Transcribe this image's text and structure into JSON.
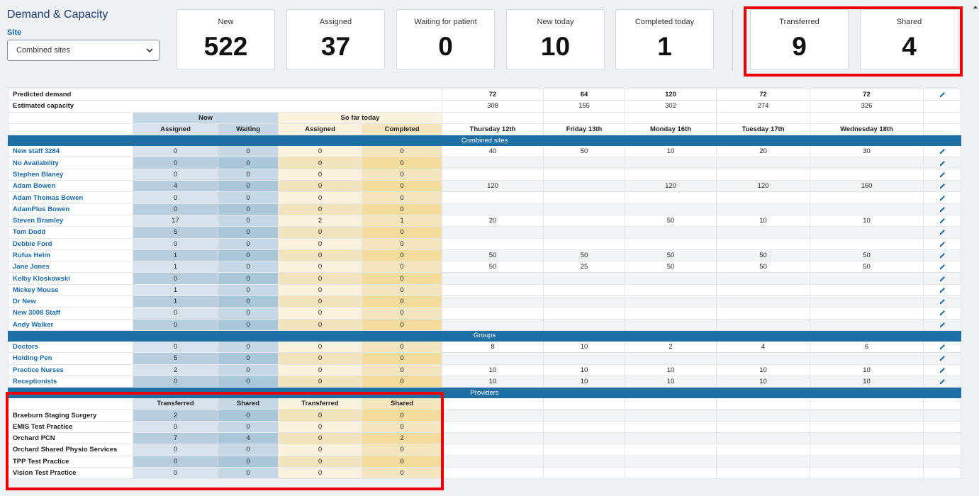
{
  "header": {
    "title": "Demand & Capacity",
    "site_label": "Site",
    "site_selected": "Combined sites"
  },
  "cards": [
    {
      "label": "New",
      "value": "522"
    },
    {
      "label": "Assigned",
      "value": "37"
    },
    {
      "label": "Waiting for patient",
      "value": "0"
    },
    {
      "label": "New today",
      "value": "10"
    },
    {
      "label": "Completed today",
      "value": "1"
    },
    {
      "label": "Transferred",
      "value": "9"
    },
    {
      "label": "Shared",
      "value": "4"
    }
  ],
  "summary": {
    "predicted_label": "Predicted demand",
    "predicted": [
      "72",
      "64",
      "120",
      "72",
      "72"
    ],
    "capacity_label": "Estimated capacity",
    "capacity": [
      "308",
      "155",
      "302",
      "274",
      "326"
    ]
  },
  "column_groups": {
    "now": "Now",
    "so_far": "So far today"
  },
  "columns": {
    "assigned": "Assigned",
    "waiting": "Waiting",
    "sf_assigned": "Assigned",
    "completed": "Completed",
    "days": [
      "Thursday 12th",
      "Friday 13th",
      "Monday 16th",
      "Tuesday 17th",
      "Wednesday 18th"
    ]
  },
  "sections": {
    "combined": "Combined sites",
    "groups": "Groups",
    "providers": "Providers"
  },
  "staff_rows": [
    {
      "name": "New staff 3284",
      "v": [
        "0",
        "0",
        "0",
        "0"
      ],
      "days": [
        "40",
        "50",
        "10",
        "20",
        "30"
      ]
    },
    {
      "name": "No Availability",
      "v": [
        "0",
        "0",
        "0",
        "0"
      ],
      "days": [
        "",
        "",
        "",
        "",
        ""
      ]
    },
    {
      "name": "Stephen Blaney",
      "v": [
        "0",
        "0",
        "0",
        "0"
      ],
      "days": [
        "",
        "",
        "",
        "",
        ""
      ]
    },
    {
      "name": "Adam Bowen",
      "v": [
        "4",
        "0",
        "0",
        "0"
      ],
      "days": [
        "120",
        "",
        "120",
        "120",
        "160"
      ]
    },
    {
      "name": "Adam Thomas Bowen",
      "v": [
        "0",
        "0",
        "0",
        "0"
      ],
      "days": [
        "",
        "",
        "",
        "",
        ""
      ]
    },
    {
      "name": "AdamPlus Bowen",
      "v": [
        "0",
        "0",
        "0",
        "0"
      ],
      "days": [
        "",
        "",
        "",
        "",
        ""
      ]
    },
    {
      "name": "Steven Bramley",
      "v": [
        "17",
        "0",
        "2",
        "1"
      ],
      "days": [
        "20",
        "",
        "50",
        "10",
        "10"
      ]
    },
    {
      "name": "Tom Dodd",
      "v": [
        "5",
        "0",
        "0",
        "0"
      ],
      "days": [
        "",
        "",
        "",
        "",
        ""
      ]
    },
    {
      "name": "Debbie Ford",
      "v": [
        "0",
        "0",
        "0",
        "0"
      ],
      "days": [
        "",
        "",
        "",
        "",
        ""
      ]
    },
    {
      "name": "Rufus Helm",
      "v": [
        "1",
        "0",
        "0",
        "0"
      ],
      "days": [
        "50",
        "50",
        "50",
        "50",
        "50"
      ]
    },
    {
      "name": "Jane Jones",
      "v": [
        "1",
        "0",
        "0",
        "0"
      ],
      "days": [
        "50",
        "25",
        "50",
        "50",
        "50"
      ]
    },
    {
      "name": "Kelby Kloskowski",
      "v": [
        "0",
        "0",
        "0",
        "0"
      ],
      "days": [
        "",
        "",
        "",
        "",
        ""
      ]
    },
    {
      "name": "Mickey Mouse",
      "v": [
        "1",
        "0",
        "0",
        "0"
      ],
      "days": [
        "",
        "",
        "",
        "",
        ""
      ]
    },
    {
      "name": "Dr New",
      "v": [
        "1",
        "0",
        "0",
        "0"
      ],
      "days": [
        "",
        "",
        "",
        "",
        ""
      ]
    },
    {
      "name": "New 3008 Staff",
      "v": [
        "0",
        "0",
        "0",
        "0"
      ],
      "days": [
        "",
        "",
        "",
        "",
        ""
      ]
    },
    {
      "name": "Andy Walker",
      "v": [
        "0",
        "0",
        "0",
        "0"
      ],
      "days": [
        "",
        "",
        "",
        "",
        ""
      ]
    }
  ],
  "group_rows": [
    {
      "name": "Doctors",
      "v": [
        "0",
        "0",
        "0",
        "0"
      ],
      "days": [
        "8",
        "10",
        "2",
        "4",
        "6"
      ]
    },
    {
      "name": "Holding Pen",
      "v": [
        "5",
        "0",
        "0",
        "0"
      ],
      "days": [
        "",
        "",
        "",
        "",
        ""
      ]
    },
    {
      "name": "Practice Nurses",
      "v": [
        "2",
        "0",
        "0",
        "0"
      ],
      "days": [
        "10",
        "10",
        "10",
        "10",
        "10"
      ]
    },
    {
      "name": "Receptionists",
      "v": [
        "0",
        "0",
        "0",
        "0"
      ],
      "days": [
        "10",
        "10",
        "10",
        "10",
        "10"
      ]
    }
  ],
  "provider_columns": [
    "Transferred",
    "Shared",
    "Transferred",
    "Shared"
  ],
  "provider_rows": [
    {
      "name": "Braeburn Staging Surgery",
      "v": [
        "2",
        "0",
        "0",
        "0"
      ]
    },
    {
      "name": "EMIS Test Practice",
      "v": [
        "0",
        "0",
        "0",
        "0"
      ]
    },
    {
      "name": "Orchard PCN",
      "v": [
        "7",
        "4",
        "0",
        "2"
      ]
    },
    {
      "name": "Orchard Shared Physio Services",
      "v": [
        "0",
        "0",
        "0",
        "0"
      ]
    },
    {
      "name": "TPP Test Practice",
      "v": [
        "0",
        "0",
        "0",
        "0"
      ]
    },
    {
      "name": "Vision Test Practice",
      "v": [
        "0",
        "0",
        "0",
        "0"
      ]
    }
  ],
  "colors": {
    "band": "#1e6fa3",
    "link": "#1a6aa8",
    "highlight": "#ee0000"
  },
  "icons": {
    "edit": "pencil-icon",
    "select": "chevron-down-icon"
  }
}
